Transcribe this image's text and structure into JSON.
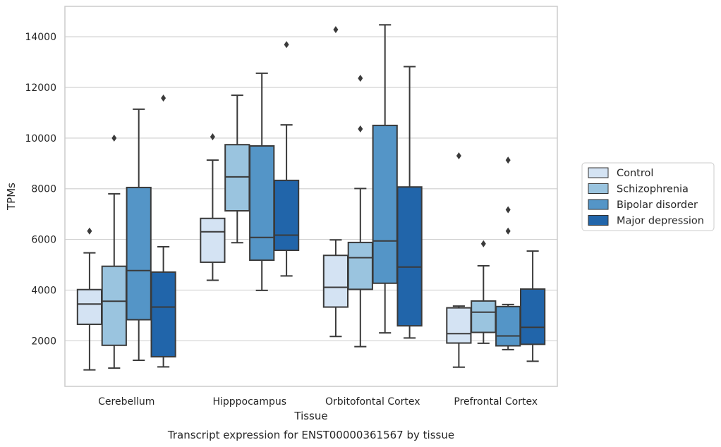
{
  "chart_data": {
    "type": "box",
    "xlabel": "Tissue",
    "ylabel": "TPMs",
    "caption": "Transcript expression for ENST00000361567 by tissue",
    "categories": [
      "Cerebellum",
      "Hipppocampus",
      "Orbitofontal Cortex",
      "Prefrontal Cortex"
    ],
    "y_ticks": [
      2000,
      4000,
      6000,
      8000,
      10000,
      12000,
      14000
    ],
    "ylim": [
      200,
      15200
    ],
    "grid": "horizontal",
    "legend_position": "right",
    "series": [
      {
        "name": "Control",
        "color": "#d4e3f3",
        "boxes": [
          {
            "whisker_low": 850,
            "q1": 2650,
            "median": 3450,
            "q3": 4020,
            "whisker_high": 5470,
            "outliers": [
              6330
            ]
          },
          {
            "whisker_low": 4390,
            "q1": 5100,
            "median": 6300,
            "q3": 6830,
            "whisker_high": 9130,
            "outliers": [
              10050
            ]
          },
          {
            "whisker_low": 2170,
            "q1": 3330,
            "median": 4110,
            "q3": 5370,
            "whisker_high": 5980,
            "outliers": [
              14280
            ]
          },
          {
            "whisker_low": 960,
            "q1": 1910,
            "median": 2280,
            "q3": 3300,
            "whisker_high": 3370,
            "outliers": [
              9300
            ]
          }
        ]
      },
      {
        "name": "Schizophrenia",
        "color": "#9ac4df",
        "boxes": [
          {
            "whisker_low": 920,
            "q1": 1820,
            "median": 3560,
            "q3": 4940,
            "whisker_high": 7800,
            "outliers": [
              10000
            ]
          },
          {
            "whisker_low": 5870,
            "q1": 7130,
            "median": 8470,
            "q3": 9740,
            "whisker_high": 11690,
            "outliers": []
          },
          {
            "whisker_low": 1770,
            "q1": 4030,
            "median": 5280,
            "q3": 5880,
            "whisker_high": 8010,
            "outliers": [
              10360,
              12360
            ]
          },
          {
            "whisker_low": 1900,
            "q1": 2330,
            "median": 3130,
            "q3": 3570,
            "whisker_high": 4960,
            "outliers": [
              5830
            ]
          }
        ]
      },
      {
        "name": "Bipolar disorder",
        "color": "#5495c7",
        "boxes": [
          {
            "whisker_low": 1230,
            "q1": 2830,
            "median": 4770,
            "q3": 8050,
            "whisker_high": 11140,
            "outliers": []
          },
          {
            "whisker_low": 3990,
            "q1": 5180,
            "median": 6080,
            "q3": 9690,
            "whisker_high": 12560,
            "outliers": []
          },
          {
            "whisker_low": 2310,
            "q1": 4270,
            "median": 5940,
            "q3": 10500,
            "whisker_high": 14470,
            "outliers": []
          },
          {
            "whisker_low": 1650,
            "q1": 1800,
            "median": 2190,
            "q3": 3350,
            "whisker_high": 3430,
            "outliers": [
              6330,
              7170,
              9130
            ]
          }
        ]
      },
      {
        "name": "Major depression",
        "color": "#2165aa",
        "boxes": [
          {
            "whisker_low": 970,
            "q1": 1370,
            "median": 3330,
            "q3": 4710,
            "whisker_high": 5710,
            "outliers": [
              11580
            ]
          },
          {
            "whisker_low": 4560,
            "q1": 5570,
            "median": 6170,
            "q3": 8330,
            "whisker_high": 10520,
            "outliers": [
              13690
            ]
          },
          {
            "whisker_low": 2110,
            "q1": 2590,
            "median": 4910,
            "q3": 8070,
            "whisker_high": 12820,
            "outliers": []
          },
          {
            "whisker_low": 1190,
            "q1": 1860,
            "median": 2530,
            "q3": 4040,
            "whisker_high": 5540,
            "outliers": []
          }
        ]
      }
    ]
  }
}
